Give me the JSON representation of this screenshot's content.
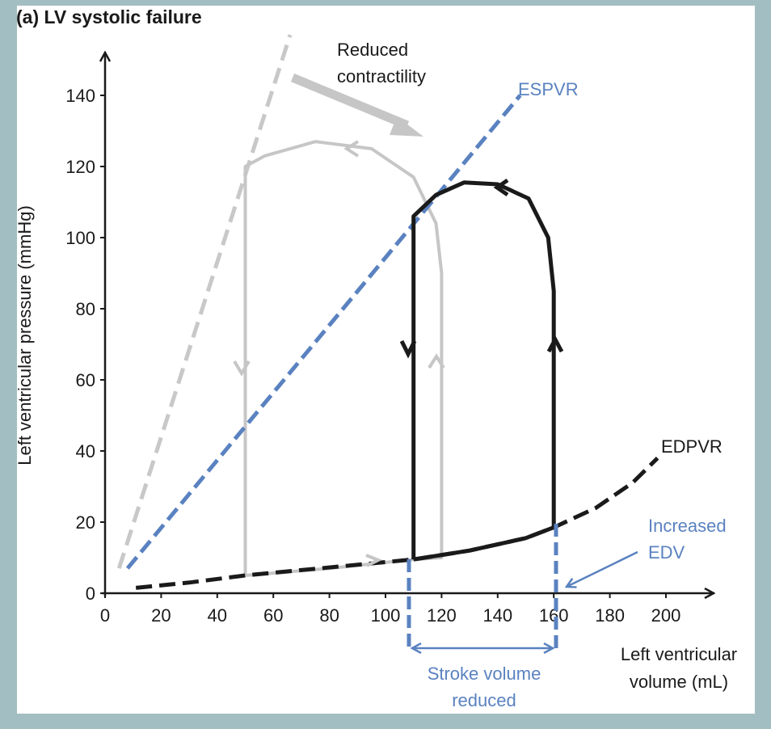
{
  "colors": {
    "background": "#a3bec2",
    "panel": "#ffffff",
    "black": "#1a1a1a",
    "gray": "#c6c6c6",
    "blue": "#5a82c0",
    "grayDashed": "#c8c8c8"
  },
  "chart_data": {
    "type": "line",
    "title": "(a) LV systolic failure",
    "xlabel": "Left ventricular volume (mL)",
    "xlabel_lines": [
      "Left ventricular",
      "volume (mL)"
    ],
    "ylabel": "Left ventricular pressure (mmHg)",
    "xlim": [
      0,
      200
    ],
    "ylim": [
      0,
      140
    ],
    "xticks": [
      0,
      20,
      40,
      60,
      80,
      100,
      120,
      140,
      160,
      180,
      200
    ],
    "yticks": [
      0,
      20,
      40,
      60,
      80,
      100,
      120,
      140
    ],
    "grid": false,
    "series": [
      {
        "name": "ESPVR",
        "style": "dashed",
        "color": "#5a82c0",
        "points": [
          [
            8,
            7
          ],
          [
            148,
            140
          ]
        ]
      },
      {
        "name": "EDPVR",
        "style": "dashed",
        "color": "#1a1a1a",
        "points": [
          [
            11,
            1.5
          ],
          [
            30,
            3
          ],
          [
            50,
            5
          ],
          [
            110,
            9.5
          ],
          [
            130,
            12
          ],
          [
            150,
            15.5
          ],
          [
            160,
            18.5
          ],
          [
            175,
            24
          ],
          [
            188,
            31
          ],
          [
            197,
            38
          ]
        ]
      },
      {
        "name": "",
        "style": "dashed",
        "color": "#c8c8c8",
        "points": [
          [
            5,
            7
          ],
          [
            66,
            157
          ]
        ]
      },
      {
        "name": "",
        "style": "solid",
        "color": "#c6c6c6",
        "points": [
          [
            50,
            5
          ],
          [
            80,
            7
          ],
          [
            110,
            9.5
          ],
          [
            120,
            10
          ],
          [
            120,
            90
          ],
          [
            118,
            104
          ],
          [
            110,
            117
          ],
          [
            95,
            125
          ],
          [
            75,
            127
          ],
          [
            57,
            123
          ],
          [
            50,
            120
          ],
          [
            50,
            5
          ]
        ]
      },
      {
        "name": "",
        "style": "solid",
        "color": "#1a1a1a",
        "points": [
          [
            110,
            9.5
          ],
          [
            130,
            12
          ],
          [
            150,
            15.5
          ],
          [
            160,
            18.5
          ],
          [
            160,
            85
          ],
          [
            158,
            100
          ],
          [
            151,
            111
          ],
          [
            140,
            115
          ],
          [
            128,
            115.5
          ],
          [
            118,
            112
          ],
          [
            110,
            106
          ],
          [
            110,
            9.5
          ]
        ]
      }
    ],
    "annotations": [
      {
        "text": "Reduced",
        "color": "#1a1a1a"
      },
      {
        "text": "contractility",
        "color": "#1a1a1a"
      },
      {
        "text": "ESPVR",
        "color": "#5a82c0"
      },
      {
        "text": "EDPVR",
        "color": "#1a1a1a"
      },
      {
        "text": "Increased",
        "color": "#5a82c0"
      },
      {
        "text": "EDV",
        "color": "#5a82c0"
      },
      {
        "text": "Stroke volume",
        "color": "#5a82c0"
      },
      {
        "text": "reduced",
        "color": "#5a82c0"
      }
    ]
  }
}
